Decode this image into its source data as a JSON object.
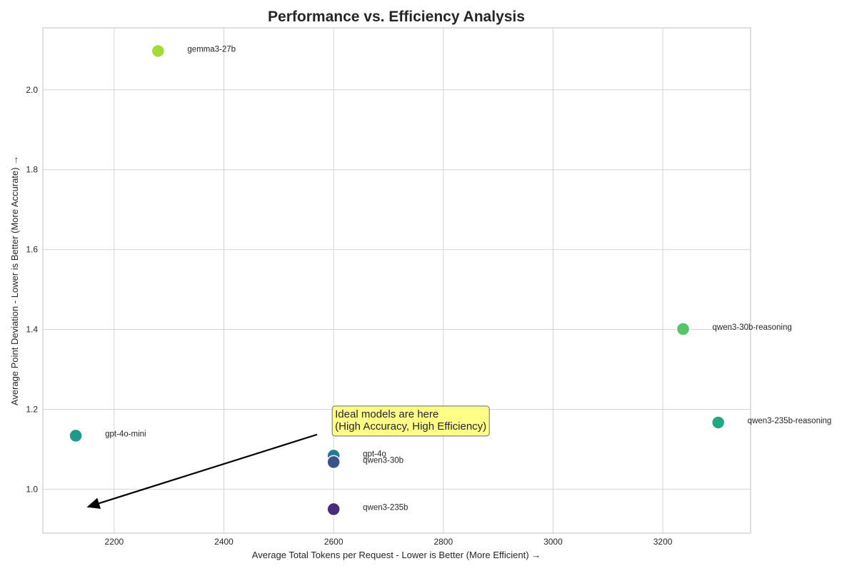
{
  "chart_data": {
    "type": "scatter",
    "title": "Performance vs. Efficiency Analysis",
    "xlabel": "Average Total Tokens per Request - Lower is Better (More Efficient) →",
    "ylabel": "Average Point Deviation - Lower is Better (More Accurate) →",
    "xlim": [
      2070,
      3360
    ],
    "ylim": [
      0.89,
      2.155
    ],
    "xticks": [
      2200,
      2400,
      2600,
      2800,
      3000,
      3200
    ],
    "yticks": [
      1.0,
      1.2,
      1.4,
      1.6,
      1.8,
      2.0
    ],
    "x_tick_labels": [
      "2200",
      "2400",
      "2600",
      "2800",
      "3000",
      "3200"
    ],
    "y_tick_labels": [
      "1.0",
      "1.2",
      "1.4",
      "1.6",
      "1.8",
      "2.0"
    ],
    "grid": true,
    "points": [
      {
        "name": "gemma3-27b",
        "x": 2280,
        "y": 2.097,
        "color": "#a5db36"
      },
      {
        "name": "qwen3-30b-reasoning",
        "x": 3237,
        "y": 1.401,
        "color": "#54c568"
      },
      {
        "name": "qwen3-235b-reasoning",
        "x": 3301,
        "y": 1.167,
        "color": "#22a884"
      },
      {
        "name": "gpt-4o-mini",
        "x": 2130,
        "y": 1.134,
        "color": "#1f9a8a"
      },
      {
        "name": "gpt-4o",
        "x": 2600,
        "y": 1.084,
        "color": "#2a788e"
      },
      {
        "name": "qwen3-30b",
        "x": 2600,
        "y": 1.068,
        "color": "#3b528b"
      },
      {
        "name": "qwen3-235b",
        "x": 2600,
        "y": 0.95,
        "color": "#472d7b"
      }
    ],
    "annotation": {
      "lines": [
        "Ideal models are here",
        "(High Accuracy, High Efficiency)"
      ],
      "text_x": 2600,
      "text_y": 1.135,
      "arrow_from_x": 2570,
      "arrow_from_y": 1.137,
      "arrow_to_x": 2150,
      "arrow_to_y": 0.955,
      "box_color": "#ffff7a"
    }
  }
}
